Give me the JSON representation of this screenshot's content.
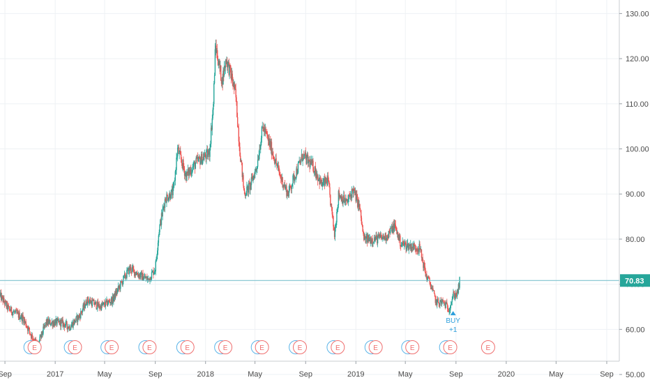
{
  "colors": {
    "up": "#26a69a",
    "down": "#ef5350",
    "grid": "#eef1f4",
    "axis_text": "#4a4a4a",
    "price_line": "#6fbcc9",
    "dividend": "#5ab4e8",
    "earnings": "#ef6e6e",
    "buy": "#2d9fdc"
  },
  "chart_data": {
    "type": "candlestick",
    "title": "",
    "xlabel": "",
    "ylabel": "",
    "xlim": [
      "2016-08-20",
      "2020-12-15"
    ],
    "ylim": [
      48,
      133
    ],
    "grid": true,
    "price_scale_side": "right",
    "y_ticks": [
      "50.00",
      "60.00",
      "70.00",
      "80.00",
      "90.00",
      "100.00",
      "110.00",
      "120.00",
      "130.00"
    ],
    "x_ticks": [
      {
        "label": "Sep",
        "date": "2016-09-01"
      },
      {
        "label": "2017",
        "date": "2017-01-01"
      },
      {
        "label": "May",
        "date": "2017-05-01"
      },
      {
        "label": "Sep",
        "date": "2017-09-01"
      },
      {
        "label": "2018",
        "date": "2018-01-01"
      },
      {
        "label": "May",
        "date": "2018-05-01"
      },
      {
        "label": "Sep",
        "date": "2018-09-01"
      },
      {
        "label": "2019",
        "date": "2019-01-01"
      },
      {
        "label": "May",
        "date": "2019-05-01"
      },
      {
        "label": "Sep",
        "date": "2019-09-01"
      },
      {
        "label": "2020",
        "date": "2020-01-01"
      },
      {
        "label": "May",
        "date": "2020-05-01"
      },
      {
        "label": "Sep",
        "date": "2020-09-01"
      }
    ],
    "price_path": [
      [
        "2016-08-20",
        67.5
      ],
      [
        "2016-09-10",
        64.5
      ],
      [
        "2016-10-15",
        62.5
      ],
      [
        "2016-11-05",
        58.5
      ],
      [
        "2016-11-20",
        56.5
      ],
      [
        "2016-12-10",
        61.5
      ],
      [
        "2017-01-15",
        61.5
      ],
      [
        "2017-02-05",
        60.5
      ],
      [
        "2017-03-01",
        63.0
      ],
      [
        "2017-03-20",
        66.5
      ],
      [
        "2017-04-20",
        65.0
      ],
      [
        "2017-05-20",
        66.5
      ],
      [
        "2017-06-15",
        71.0
      ],
      [
        "2017-07-01",
        73.5
      ],
      [
        "2017-07-25",
        72.0
      ],
      [
        "2017-08-15",
        71.0
      ],
      [
        "2017-09-01",
        73.5
      ],
      [
        "2017-09-10",
        82.0
      ],
      [
        "2017-09-25",
        89.0
      ],
      [
        "2017-10-15",
        90.5
      ],
      [
        "2017-10-25",
        100.0
      ],
      [
        "2017-11-15",
        94.0
      ],
      [
        "2017-12-10",
        97.0
      ],
      [
        "2018-01-10",
        99.0
      ],
      [
        "2018-01-20",
        110.0
      ],
      [
        "2018-01-25",
        123.0
      ],
      [
        "2018-02-10",
        115.0
      ],
      [
        "2018-02-20",
        120.0
      ],
      [
        "2018-03-05",
        116.0
      ],
      [
        "2018-03-15",
        112.0
      ],
      [
        "2018-03-25",
        100.0
      ],
      [
        "2018-04-05",
        90.0
      ],
      [
        "2018-04-20",
        92.0
      ],
      [
        "2018-05-05",
        96.0
      ],
      [
        "2018-05-20",
        105.0
      ],
      [
        "2018-06-10",
        100.0
      ],
      [
        "2018-07-01",
        94.0
      ],
      [
        "2018-07-20",
        90.0
      ],
      [
        "2018-08-05",
        94.0
      ],
      [
        "2018-08-25",
        98.5
      ],
      [
        "2018-09-20",
        96.0
      ],
      [
        "2018-10-10",
        92.0
      ],
      [
        "2018-10-25",
        93.0
      ],
      [
        "2018-11-10",
        81.0
      ],
      [
        "2018-11-20",
        90.0
      ],
      [
        "2018-12-10",
        88.0
      ],
      [
        "2018-12-25",
        91.0
      ],
      [
        "2019-01-10",
        87.0
      ],
      [
        "2019-01-20",
        80.0
      ],
      [
        "2019-02-15",
        80.0
      ],
      [
        "2019-03-15",
        80.5
      ],
      [
        "2019-04-05",
        83.0
      ],
      [
        "2019-04-20",
        79.0
      ],
      [
        "2019-05-10",
        78.5
      ],
      [
        "2019-06-05",
        78.0
      ],
      [
        "2019-06-20",
        72.0
      ],
      [
        "2019-07-01",
        70.0
      ],
      [
        "2019-07-15",
        66.0
      ],
      [
        "2019-08-01",
        66.0
      ],
      [
        "2019-08-15",
        64.5
      ],
      [
        "2019-08-25",
        67.5
      ],
      [
        "2019-09-05",
        68.0
      ],
      [
        "2019-09-10",
        70.8
      ]
    ],
    "last_price": 70.83,
    "last_price_label": "70.83",
    "signals": [
      {
        "label": "BUY",
        "sub": "+1",
        "date": "2019-08-25",
        "price": 64.2
      }
    ],
    "event_markers": [
      {
        "letter": "D",
        "date": "2016-11-02",
        "kind": "dividend"
      },
      {
        "letter": "E",
        "date": "2016-11-12",
        "kind": "earnings"
      },
      {
        "letter": "D",
        "date": "2017-02-08",
        "kind": "dividend"
      },
      {
        "letter": "E",
        "date": "2017-02-18",
        "kind": "earnings"
      },
      {
        "letter": "D",
        "date": "2017-05-08",
        "kind": "dividend"
      },
      {
        "letter": "E",
        "date": "2017-05-18",
        "kind": "earnings"
      },
      {
        "letter": "D",
        "date": "2017-08-08",
        "kind": "dividend"
      },
      {
        "letter": "E",
        "date": "2017-08-18",
        "kind": "earnings"
      },
      {
        "letter": "D",
        "date": "2017-11-08",
        "kind": "dividend"
      },
      {
        "letter": "E",
        "date": "2017-11-18",
        "kind": "earnings"
      },
      {
        "letter": "D",
        "date": "2018-02-08",
        "kind": "dividend"
      },
      {
        "letter": "E",
        "date": "2018-02-18",
        "kind": "earnings"
      },
      {
        "letter": "D",
        "date": "2018-05-08",
        "kind": "dividend"
      },
      {
        "letter": "E",
        "date": "2018-05-18",
        "kind": "earnings"
      },
      {
        "letter": "D",
        "date": "2018-08-08",
        "kind": "dividend"
      },
      {
        "letter": "E",
        "date": "2018-08-18",
        "kind": "earnings"
      },
      {
        "letter": "D",
        "date": "2018-11-08",
        "kind": "dividend"
      },
      {
        "letter": "E",
        "date": "2018-11-18",
        "kind": "earnings"
      },
      {
        "letter": "D",
        "date": "2019-02-08",
        "kind": "dividend"
      },
      {
        "letter": "E",
        "date": "2019-02-18",
        "kind": "earnings"
      },
      {
        "letter": "D",
        "date": "2019-05-08",
        "kind": "dividend"
      },
      {
        "letter": "E",
        "date": "2019-05-18",
        "kind": "earnings"
      },
      {
        "letter": "D",
        "date": "2019-08-08",
        "kind": "dividend"
      },
      {
        "letter": "E",
        "date": "2019-08-18",
        "kind": "earnings"
      },
      {
        "letter": "E",
        "date": "2019-11-18",
        "kind": "earnings"
      }
    ]
  }
}
